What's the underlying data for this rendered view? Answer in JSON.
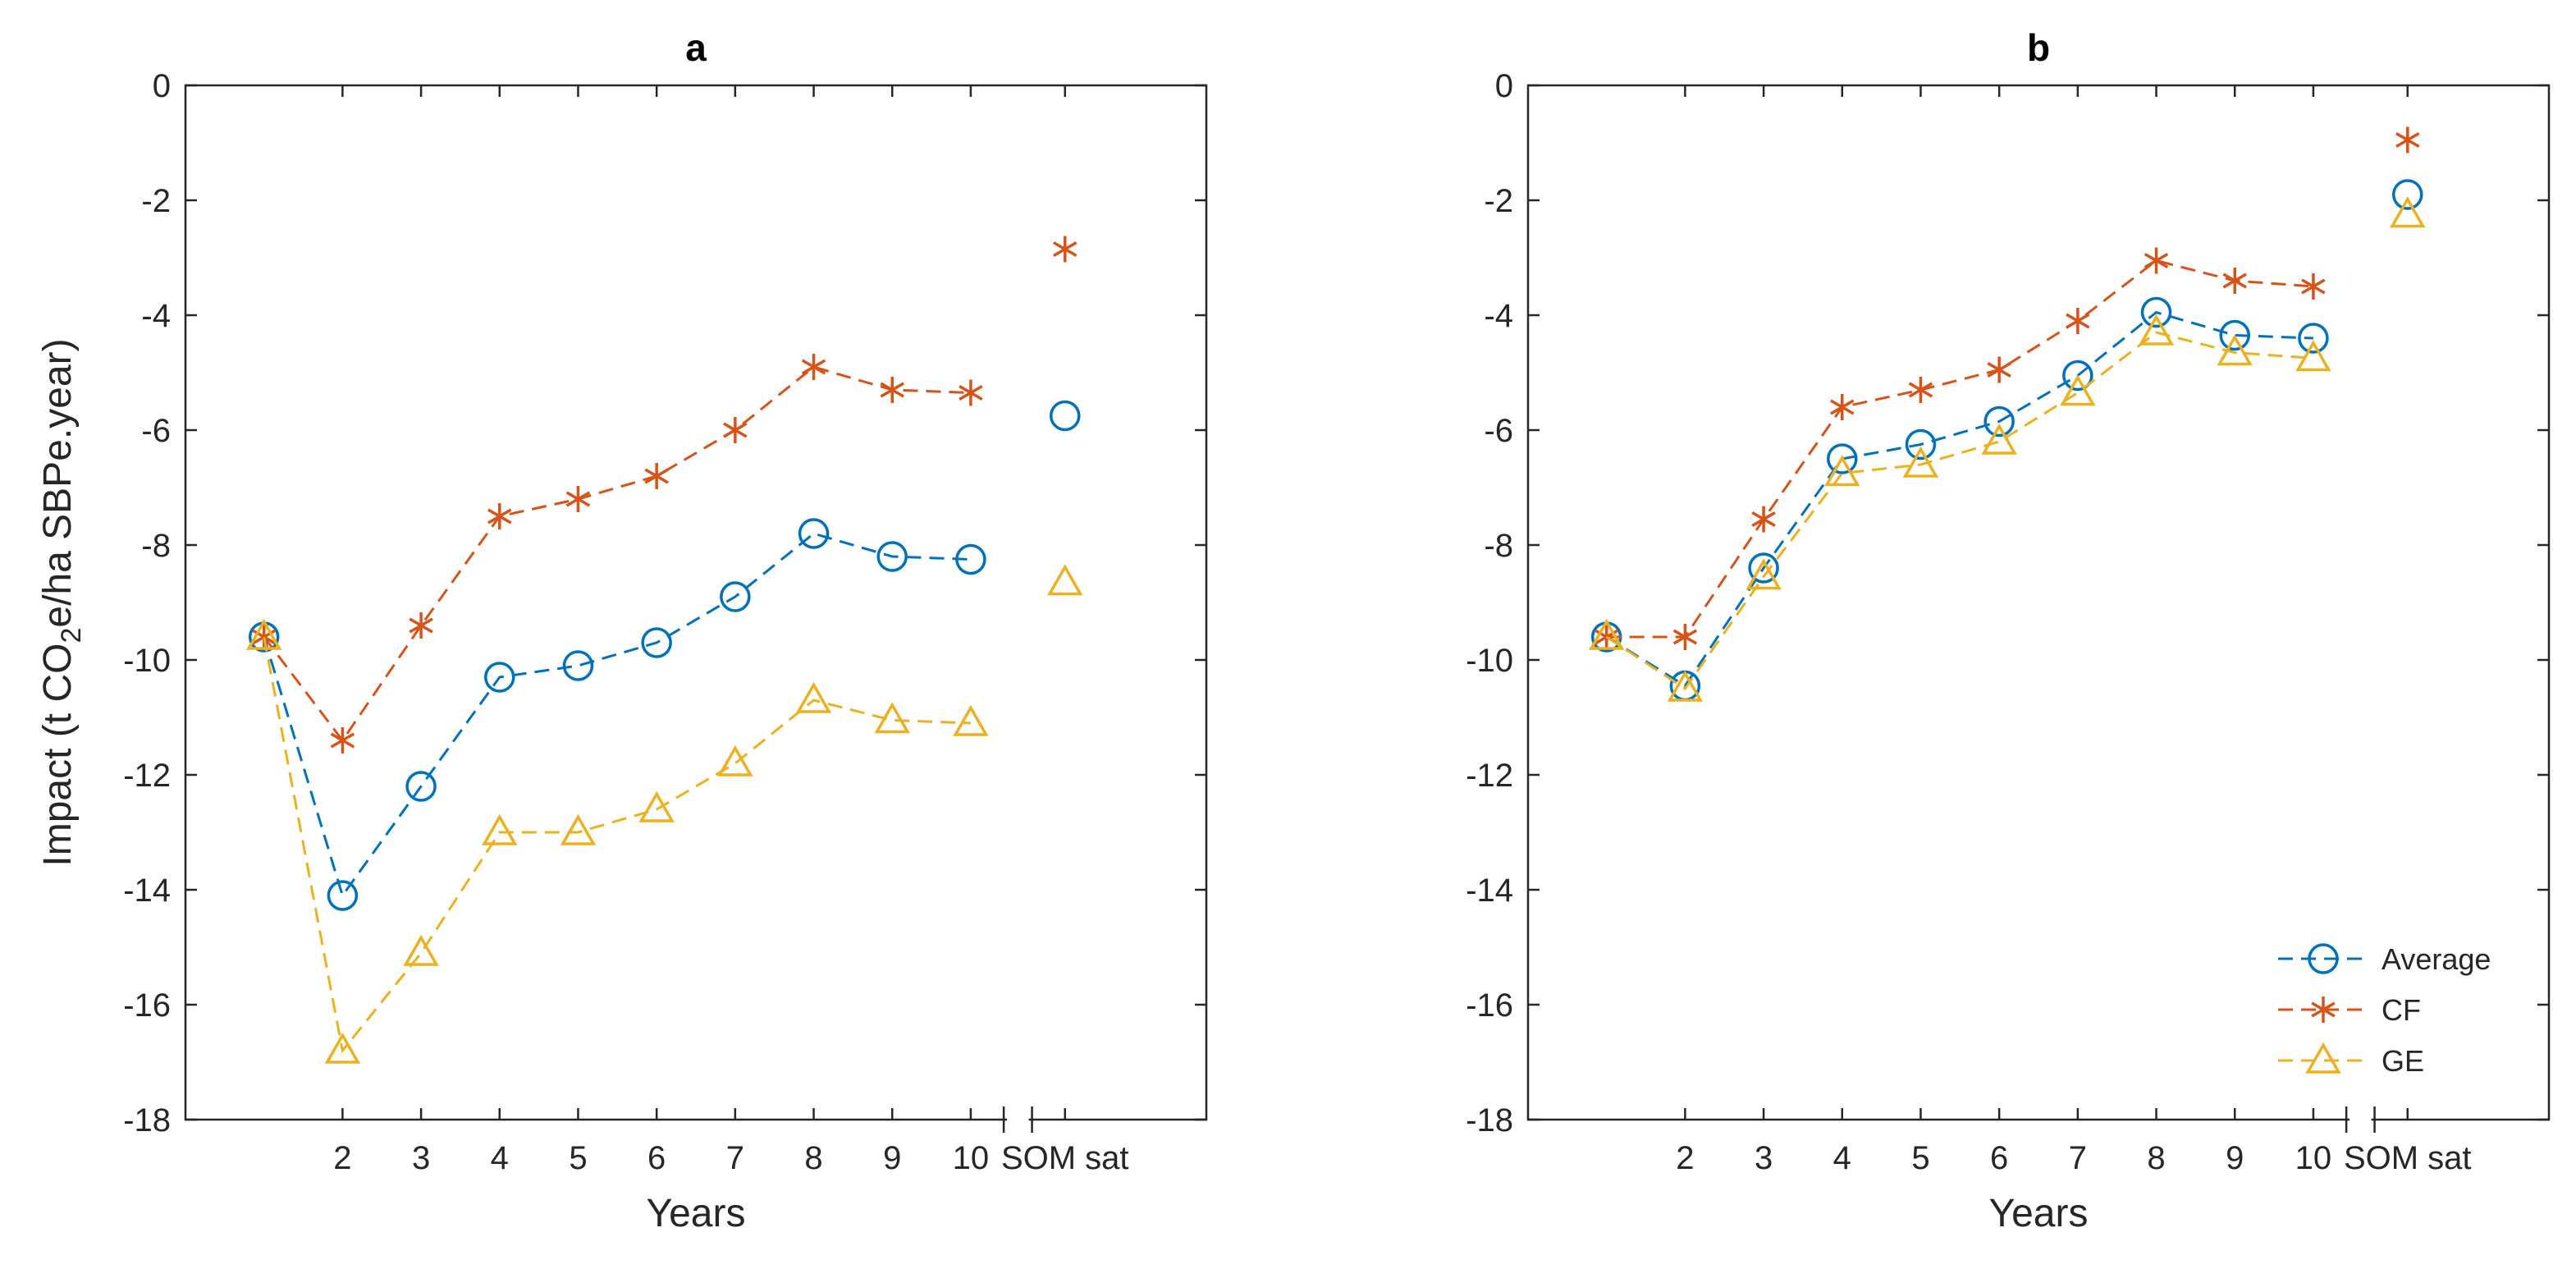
{
  "chart_data": [
    {
      "type": "line",
      "title": "a",
      "xlabel": "Years",
      "ylabel": "Impact (t CO2e/ha SBPe.year)",
      "ylabel_parts": [
        "Impact (t CO",
        "2",
        "e/ha SBPe.year)"
      ],
      "ylim": [
        -18,
        0
      ],
      "yticks": [
        "0",
        "-2",
        "-4",
        "-6",
        "-8",
        "-10",
        "-12",
        "-14",
        "-16",
        "-18"
      ],
      "xticks": [
        "2",
        "3",
        "4",
        "5",
        "6",
        "7",
        "8",
        "9",
        "10",
        "SOM sat"
      ],
      "x": [
        1,
        2,
        3,
        4,
        5,
        6,
        7,
        8,
        9,
        10
      ],
      "sat_label": "SOM sat",
      "series": [
        {
          "name": "Average",
          "color": "#0072BD",
          "marker": "circle",
          "values": [
            -9.6,
            -14.1,
            -12.2,
            -10.3,
            -10.1,
            -9.7,
            -8.9,
            -7.8,
            -8.2,
            -8.25
          ],
          "sat": -5.75
        },
        {
          "name": "CF",
          "color": "#D95319",
          "marker": "star",
          "values": [
            -9.6,
            -11.4,
            -9.4,
            -7.5,
            -7.2,
            -6.8,
            -6.0,
            -4.9,
            -5.3,
            -5.35
          ],
          "sat": -2.85
        },
        {
          "name": "GE",
          "color": "#EDB120",
          "marker": "triangle",
          "values": [
            -9.6,
            -16.8,
            -15.1,
            -13.0,
            -13.0,
            -12.6,
            -11.8,
            -10.7,
            -11.05,
            -11.1
          ],
          "sat": -8.65
        }
      ]
    },
    {
      "type": "line",
      "title": "b",
      "xlabel": "Years",
      "ylabel": "",
      "ylim": [
        -18,
        0
      ],
      "yticks": [
        "0",
        "-2",
        "-4",
        "-6",
        "-8",
        "-10",
        "-12",
        "-14",
        "-16",
        "-18"
      ],
      "xticks": [
        "2",
        "3",
        "4",
        "5",
        "6",
        "7",
        "8",
        "9",
        "10",
        "SOM sat"
      ],
      "x": [
        1,
        2,
        3,
        4,
        5,
        6,
        7,
        8,
        9,
        10
      ],
      "sat_label": "SOM sat",
      "legend": {
        "position": "bottom-right",
        "entries": [
          "Average",
          "CF",
          "GE"
        ]
      },
      "series": [
        {
          "name": "Average",
          "color": "#0072BD",
          "marker": "circle",
          "values": [
            -9.6,
            -10.45,
            -8.4,
            -6.5,
            -6.25,
            -5.85,
            -5.05,
            -3.95,
            -4.35,
            -4.4
          ],
          "sat": -1.9
        },
        {
          "name": "CF",
          "color": "#D95319",
          "marker": "star",
          "values": [
            -9.6,
            -9.6,
            -7.55,
            -5.6,
            -5.3,
            -4.95,
            -4.1,
            -3.05,
            -3.4,
            -3.5
          ],
          "sat": -0.95
        },
        {
          "name": "GE",
          "color": "#EDB120",
          "marker": "triangle",
          "values": [
            -9.6,
            -10.5,
            -8.55,
            -6.75,
            -6.6,
            -6.2,
            -5.35,
            -4.3,
            -4.65,
            -4.75
          ],
          "sat": -2.25
        }
      ]
    }
  ]
}
